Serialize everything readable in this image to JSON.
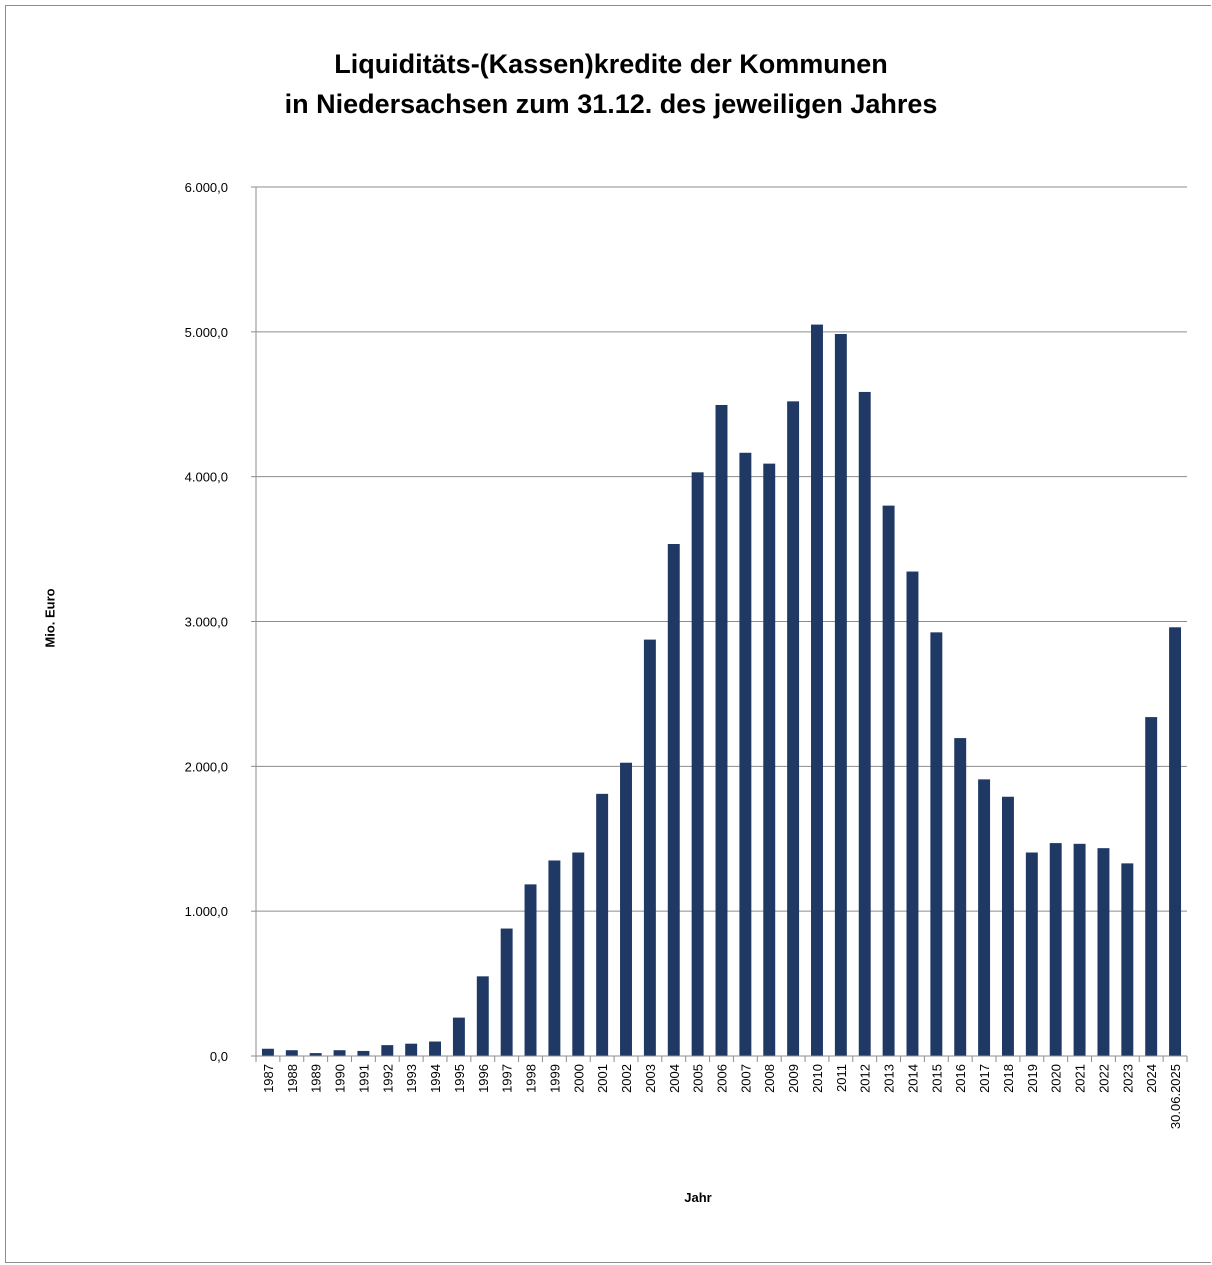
{
  "chart_data": {
    "type": "bar",
    "title_line1": "Liquiditäts-(Kassen)kredite der Kommunen",
    "title_line2": "in Niedersachsen zum 31.12. des jeweiligen Jahres",
    "xlabel": "Jahr",
    "ylabel": "Mio. Euro",
    "ylim": [
      0,
      6000
    ],
    "yticks": [
      0,
      1000,
      2000,
      3000,
      4000,
      5000,
      6000
    ],
    "ytick_labels": [
      "0,0",
      "1.000,0",
      "2.000,0",
      "3.000,0",
      "4.000,0",
      "5.000,0",
      "6.000,0"
    ],
    "grid": true,
    "bar_color": "#1f3864",
    "categories": [
      "1987",
      "1988",
      "1989",
      "1990",
      "1991",
      "1992",
      "1993",
      "1994",
      "1995",
      "1996",
      "1997",
      "1998",
      "1999",
      "2000",
      "2001",
      "2002",
      "2003",
      "2004",
      "2005",
      "2006",
      "2007",
      "2008",
      "2009",
      "2010",
      "2011",
      "2012",
      "2013",
      "2014",
      "2015",
      "2016",
      "2017",
      "2018",
      "2019",
      "2020",
      "2021",
      "2022",
      "2023",
      "2024",
      "30.06.2025"
    ],
    "values": [
      50,
      40,
      20,
      40,
      35,
      75,
      85,
      100,
      265,
      550,
      880,
      1185,
      1350,
      1405,
      1810,
      2025,
      2875,
      3535,
      4030,
      4495,
      4165,
      4090,
      4520,
      5050,
      4985,
      4585,
      3800,
      3345,
      2925,
      2195,
      1910,
      1790,
      1405,
      1470,
      1465,
      1435,
      1330,
      2340,
      2960
    ]
  }
}
